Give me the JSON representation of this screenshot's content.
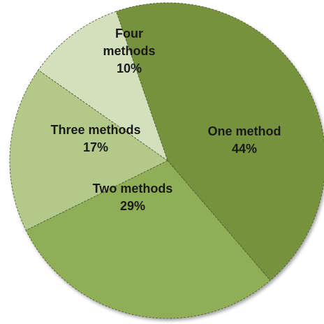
{
  "chart_data": {
    "type": "pie",
    "title": "",
    "slices": [
      {
        "label": "One method",
        "pct_label": "44%",
        "value": 44,
        "color": "#76923c"
      },
      {
        "label": "Two methods",
        "pct_label": "29%",
        "value": 29,
        "color": "#8fae55"
      },
      {
        "label": "Three methods",
        "pct_label": "17%",
        "value": 17,
        "color": "#b3c98a"
      },
      {
        "label": "Four methods",
        "pct_label": "10%",
        "value": 10,
        "color": "#d3e0bd"
      }
    ],
    "legend": "none",
    "data_labels": "inside"
  }
}
